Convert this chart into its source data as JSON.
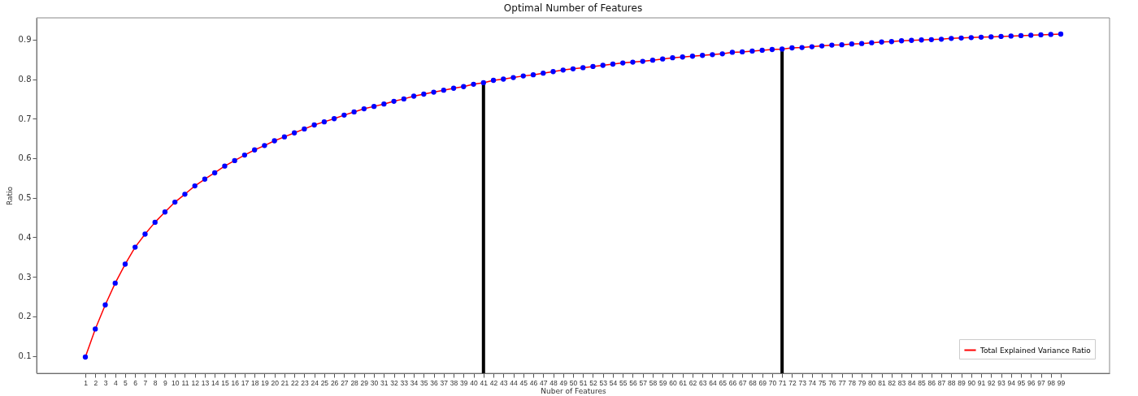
{
  "chart_data": {
    "type": "line",
    "title": "Optimal Number of Features",
    "xlabel": "Nuber of Features",
    "ylabel": "Ratio",
    "x": [
      1,
      2,
      3,
      4,
      5,
      6,
      7,
      8,
      9,
      10,
      11,
      12,
      13,
      14,
      15,
      16,
      17,
      18,
      19,
      20,
      21,
      22,
      23,
      24,
      25,
      26,
      27,
      28,
      29,
      30,
      31,
      32,
      33,
      34,
      35,
      36,
      37,
      38,
      39,
      40,
      41,
      42,
      43,
      44,
      45,
      46,
      47,
      48,
      49,
      50,
      51,
      52,
      53,
      54,
      55,
      56,
      57,
      58,
      59,
      60,
      61,
      62,
      63,
      64,
      65,
      66,
      67,
      68,
      69,
      70,
      71,
      72,
      73,
      74,
      75,
      76,
      77,
      78,
      79,
      80,
      81,
      82,
      83,
      84,
      85,
      86,
      87,
      88,
      89,
      90,
      91,
      92,
      93,
      94,
      95,
      96,
      97,
      98,
      99
    ],
    "series": [
      {
        "name": "Total Explained Variance Ratio",
        "type": "line",
        "marker": "none",
        "color": "#ff0000",
        "values": [
          0.097,
          0.168,
          0.229,
          0.284,
          0.332,
          0.375,
          0.408,
          0.438,
          0.464,
          0.489,
          0.509,
          0.53,
          0.547,
          0.563,
          0.58,
          0.594,
          0.608,
          0.621,
          0.632,
          0.644,
          0.654,
          0.664,
          0.674,
          0.684,
          0.692,
          0.7,
          0.709,
          0.717,
          0.725,
          0.731,
          0.737,
          0.744,
          0.75,
          0.757,
          0.762,
          0.767,
          0.772,
          0.777,
          0.781,
          0.787,
          0.791,
          0.797,
          0.8,
          0.804,
          0.808,
          0.811,
          0.815,
          0.819,
          0.823,
          0.826,
          0.829,
          0.832,
          0.835,
          0.838,
          0.841,
          0.843,
          0.845,
          0.848,
          0.851,
          0.854,
          0.856,
          0.858,
          0.86,
          0.862,
          0.864,
          0.868,
          0.869,
          0.871,
          0.873,
          0.875,
          0.876,
          0.879,
          0.88,
          0.882,
          0.884,
          0.886,
          0.887,
          0.889,
          0.89,
          0.892,
          0.894,
          0.895,
          0.897,
          0.898,
          0.899,
          0.9,
          0.901,
          0.903,
          0.904,
          0.905,
          0.906,
          0.907,
          0.908,
          0.909,
          0.91,
          0.911,
          0.912,
          0.913,
          0.914
        ]
      },
      {
        "type": "scatter",
        "marker": "circle",
        "color": "#0000ff",
        "values": [
          0.097,
          0.168,
          0.229,
          0.284,
          0.332,
          0.375,
          0.408,
          0.438,
          0.464,
          0.489,
          0.509,
          0.53,
          0.547,
          0.563,
          0.58,
          0.594,
          0.608,
          0.621,
          0.632,
          0.644,
          0.654,
          0.664,
          0.674,
          0.684,
          0.692,
          0.7,
          0.709,
          0.717,
          0.725,
          0.731,
          0.737,
          0.744,
          0.75,
          0.757,
          0.762,
          0.767,
          0.772,
          0.777,
          0.781,
          0.787,
          0.791,
          0.797,
          0.8,
          0.804,
          0.808,
          0.811,
          0.815,
          0.819,
          0.823,
          0.826,
          0.829,
          0.832,
          0.835,
          0.838,
          0.841,
          0.843,
          0.845,
          0.848,
          0.851,
          0.854,
          0.856,
          0.858,
          0.86,
          0.862,
          0.864,
          0.868,
          0.869,
          0.871,
          0.873,
          0.875,
          0.876,
          0.879,
          0.88,
          0.882,
          0.884,
          0.886,
          0.887,
          0.889,
          0.89,
          0.892,
          0.894,
          0.895,
          0.897,
          0.898,
          0.899,
          0.9,
          0.901,
          0.903,
          0.904,
          0.905,
          0.906,
          0.907,
          0.908,
          0.909,
          0.91,
          0.911,
          0.912,
          0.913,
          0.914
        ]
      }
    ],
    "xlim": [
      -3.9,
      103.9
    ],
    "ylim": [
      0.056,
      0.955
    ],
    "xticks": [
      1,
      2,
      3,
      4,
      5,
      6,
      7,
      8,
      9,
      10,
      11,
      12,
      13,
      14,
      15,
      16,
      17,
      18,
      19,
      20,
      21,
      22,
      23,
      24,
      25,
      26,
      27,
      28,
      29,
      30,
      31,
      32,
      33,
      34,
      35,
      36,
      37,
      38,
      39,
      40,
      41,
      42,
      43,
      44,
      45,
      46,
      47,
      48,
      49,
      50,
      51,
      52,
      53,
      54,
      55,
      56,
      57,
      58,
      59,
      60,
      61,
      62,
      63,
      64,
      65,
      66,
      67,
      68,
      69,
      70,
      71,
      72,
      73,
      74,
      75,
      76,
      77,
      78,
      79,
      80,
      81,
      82,
      83,
      84,
      85,
      86,
      87,
      88,
      89,
      90,
      91,
      92,
      93,
      94,
      95,
      96,
      97,
      98,
      99
    ],
    "yticks": [
      0.1,
      0.2,
      0.3,
      0.4,
      0.5,
      0.6,
      0.7,
      0.8,
      0.9
    ],
    "ref_lines": [
      {
        "axis": "x",
        "value": 41,
        "color": "#000000"
      },
      {
        "axis": "x",
        "value": 71,
        "color": "#000000"
      }
    ],
    "grid": false,
    "legend": "bottom right",
    "line_style": "solid"
  }
}
